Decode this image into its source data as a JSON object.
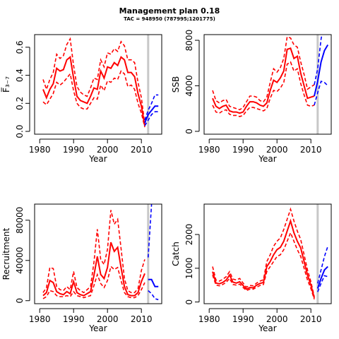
{
  "title": "Management plan 0.18",
  "subtitle": "TAC = 948950 (787995;1201775)",
  "colors": {
    "historic": "#ff0000",
    "projection": "#0000ff",
    "vline": "#c8c8c8"
  },
  "chart_data": [
    {
      "type": "line",
      "id": "f",
      "xlabel": "Year",
      "ylabel": "F̅₃₋₇",
      "xlim": [
        1978.5,
        2016
      ],
      "ylim": [
        -0.02,
        0.69
      ],
      "xticks": [
        1980,
        1990,
        2000,
        2010
      ],
      "yticks": [
        0,
        0.2,
        0.4,
        0.6
      ],
      "ytick_labels": [
        "0.0",
        "0.2",
        "0.4",
        "0.6"
      ],
      "vline": 2012,
      "historic": {
        "x": [
          1981,
          1982,
          1983,
          1984,
          1985,
          1986,
          1987,
          1988,
          1989,
          1990,
          1991,
          1992,
          1993,
          1994,
          1995,
          1996,
          1997,
          1998,
          1999,
          2000,
          2001,
          2002,
          2003,
          2004,
          2005,
          2006,
          2007,
          2008,
          2009,
          2010,
          2011
        ],
        "mid": [
          0.3,
          0.24,
          0.3,
          0.34,
          0.45,
          0.43,
          0.44,
          0.51,
          0.53,
          0.38,
          0.25,
          0.22,
          0.21,
          0.2,
          0.25,
          0.31,
          0.3,
          0.43,
          0.38,
          0.46,
          0.45,
          0.49,
          0.47,
          0.53,
          0.51,
          0.42,
          0.42,
          0.39,
          0.27,
          0.18,
          0.04
        ],
        "lo": [
          0.21,
          0.19,
          0.23,
          0.27,
          0.35,
          0.33,
          0.35,
          0.38,
          0.41,
          0.29,
          0.2,
          0.17,
          0.16,
          0.16,
          0.2,
          0.24,
          0.23,
          0.33,
          0.29,
          0.36,
          0.35,
          0.38,
          0.37,
          0.43,
          0.41,
          0.32,
          0.33,
          0.3,
          0.2,
          0.13,
          0.03
        ],
        "hi": [
          0.37,
          0.3,
          0.37,
          0.42,
          0.55,
          0.52,
          0.54,
          0.62,
          0.66,
          0.47,
          0.32,
          0.28,
          0.26,
          0.25,
          0.31,
          0.38,
          0.37,
          0.51,
          0.46,
          0.56,
          0.55,
          0.59,
          0.57,
          0.64,
          0.61,
          0.51,
          0.51,
          0.49,
          0.35,
          0.24,
          0.05
        ]
      },
      "projection": {
        "x": [
          2011,
          2012,
          2013,
          2014,
          2015
        ],
        "mid": [
          0.06,
          0.12,
          0.15,
          0.18,
          0.18
        ],
        "lo": [
          0.04,
          0.08,
          0.12,
          0.14,
          0.14
        ],
        "hi": [
          0.08,
          0.15,
          0.2,
          0.26,
          0.26
        ]
      }
    },
    {
      "type": "line",
      "id": "ssb",
      "xlabel": "Year",
      "ylabel": "SSB",
      "xlim": [
        1978.5,
        2016
      ],
      "ylim": [
        -250,
        8500
      ],
      "xticks": [
        1980,
        1990,
        2000,
        2010
      ],
      "yticks": [
        0,
        4000,
        8000
      ],
      "ytick_labels": [
        "0",
        "4000",
        "8000"
      ],
      "vline": 2012,
      "historic": {
        "x": [
          1981,
          1982,
          1983,
          1984,
          1985,
          1986,
          1987,
          1988,
          1989,
          1990,
          1991,
          1992,
          1993,
          1994,
          1995,
          1996,
          1997,
          1998,
          1999,
          2000,
          2001,
          2002,
          2003,
          2004,
          2005,
          2006,
          2007,
          2008,
          2009,
          2010,
          2011
        ],
        "mid": [
          2900,
          2200,
          2000,
          2200,
          2300,
          1800,
          1700,
          1700,
          1600,
          1700,
          2200,
          2600,
          2600,
          2500,
          2300,
          2200,
          2500,
          3600,
          4500,
          4300,
          4700,
          5300,
          7200,
          7300,
          6400,
          6600,
          5100,
          4000,
          2900,
          3000,
          3100
        ],
        "lo": [
          2300,
          1700,
          1600,
          1800,
          1900,
          1500,
          1400,
          1400,
          1300,
          1400,
          1800,
          2100,
          2100,
          2000,
          1900,
          1800,
          2000,
          2900,
          3600,
          3500,
          3800,
          4300,
          5900,
          6100,
          5300,
          5500,
          4200,
          3200,
          2300,
          2200,
          2300
        ],
        "hi": [
          3600,
          2700,
          2500,
          2700,
          2800,
          2200,
          2100,
          2000,
          1900,
          2100,
          2600,
          3100,
          3100,
          3000,
          2700,
          2600,
          3000,
          4300,
          5500,
          5200,
          5600,
          6400,
          8300,
          8200,
          7600,
          7400,
          6100,
          5000,
          3700,
          3900,
          4100
        ]
      },
      "projection": {
        "x": [
          2011,
          2012,
          2013,
          2014,
          2015
        ],
        "mid": [
          3100,
          4400,
          6100,
          7100,
          7600
        ],
        "lo": [
          2300,
          3400,
          4400,
          4300,
          4000
        ],
        "hi": [
          4100,
          5500,
          8100,
          9800,
          11000
        ]
      }
    },
    {
      "type": "line",
      "id": "recruitment",
      "xlabel": "Year",
      "ylabel": "Recruitment",
      "xlim": [
        1978.5,
        2016
      ],
      "ylim": [
        -3000,
        96000
      ],
      "xticks": [
        1980,
        1990,
        2000,
        2010
      ],
      "yticks": [
        0,
        40000,
        80000
      ],
      "ytick_labels": [
        "0",
        "40000",
        "80000"
      ],
      "vline": 2012,
      "historic": {
        "x": [
          1981,
          1982,
          1983,
          1984,
          1985,
          1986,
          1987,
          1988,
          1989,
          1990,
          1991,
          1992,
          1993,
          1994,
          1995,
          1996,
          1997,
          1998,
          1999,
          2000,
          2001,
          2002,
          2003,
          2004,
          2005,
          2006,
          2007,
          2008,
          2009,
          2010,
          2011
        ],
        "mid": [
          5000,
          8000,
          20000,
          18000,
          9000,
          7000,
          6000,
          9000,
          7000,
          19000,
          8000,
          6000,
          5000,
          7000,
          9000,
          25000,
          44000,
          26000,
          22000,
          33000,
          58000,
          49000,
          53000,
          33000,
          14000,
          6000,
          5000,
          5000,
          8000,
          19000,
          27000
        ],
        "lo": [
          2000,
          4000,
          10000,
          9000,
          5000,
          4000,
          4000,
          5000,
          4000,
          9000,
          5000,
          4000,
          3000,
          4000,
          5000,
          15000,
          26000,
          17000,
          13000,
          20000,
          34000,
          31000,
          33000,
          20000,
          8000,
          4000,
          3000,
          3000,
          5000,
          11000,
          18000
        ],
        "hi": [
          8000,
          13000,
          33000,
          32000,
          14000,
          11000,
          10000,
          14000,
          11000,
          29000,
          13000,
          10000,
          8000,
          11000,
          14000,
          38000,
          71000,
          41000,
          36000,
          51000,
          90000,
          76000,
          81000,
          52000,
          22000,
          10000,
          8000,
          8000,
          12000,
          30000,
          41000
        ]
      },
      "projection": {
        "x": [
          2012,
          2013,
          2014,
          2015
        ],
        "mid": [
          21000,
          21000,
          14000,
          14000
        ],
        "lo": [
          10000,
          7000,
          2000,
          1000
        ],
        "hi": [
          43000,
          96000,
          130000,
          150000
        ]
      }
    },
    {
      "type": "line",
      "id": "catch",
      "xlabel": "Year",
      "ylabel": "Catch",
      "xlim": [
        1978.5,
        2016
      ],
      "ylim": [
        -50,
        2900
      ],
      "xticks": [
        1980,
        1990,
        2000,
        2010
      ],
      "yticks": [
        0,
        1000,
        2000
      ],
      "ytick_labels": [
        "0",
        "1000",
        "2000"
      ],
      "vline": 2012,
      "historic": {
        "x": [
          1981,
          1982,
          1983,
          1984,
          1985,
          1986,
          1987,
          1988,
          1989,
          1990,
          1991,
          1992,
          1993,
          1994,
          1995,
          1996,
          1997,
          1998,
          1999,
          2000,
          2001,
          2002,
          2003,
          2004,
          2005,
          2006,
          2007,
          2008,
          2009,
          2010,
          2011
        ],
        "mid": [
          900,
          560,
          540,
          580,
          650,
          800,
          590,
          560,
          600,
          490,
          380,
          430,
          420,
          500,
          550,
          580,
          1050,
          1200,
          1400,
          1550,
          1620,
          1800,
          2100,
          2400,
          2050,
          1800,
          1600,
          1200,
          800,
          500,
          120
        ],
        "lo": [
          800,
          500,
          480,
          520,
          580,
          700,
          520,
          500,
          530,
          430,
          340,
          380,
          380,
          440,
          490,
          520,
          900,
          1050,
          1200,
          1350,
          1400,
          1550,
          1800,
          2050,
          1800,
          1550,
          1350,
          1000,
          650,
          400,
          80
        ],
        "hi": [
          1050,
          650,
          620,
          670,
          750,
          900,
          680,
          650,
          700,
          560,
          440,
          490,
          480,
          560,
          620,
          660,
          1200,
          1400,
          1650,
          1800,
          1900,
          2150,
          2450,
          2750,
          2400,
          2100,
          1850,
          1400,
          950,
          600,
          160
        ]
      },
      "projection": {
        "x": [
          2012,
          2013,
          2014,
          2015
        ],
        "mid": [
          400,
          700,
          950,
          1050
        ],
        "lo": [
          300,
          550,
          780,
          750
        ],
        "hi": [
          550,
          950,
          1350,
          1650
        ]
      }
    }
  ]
}
